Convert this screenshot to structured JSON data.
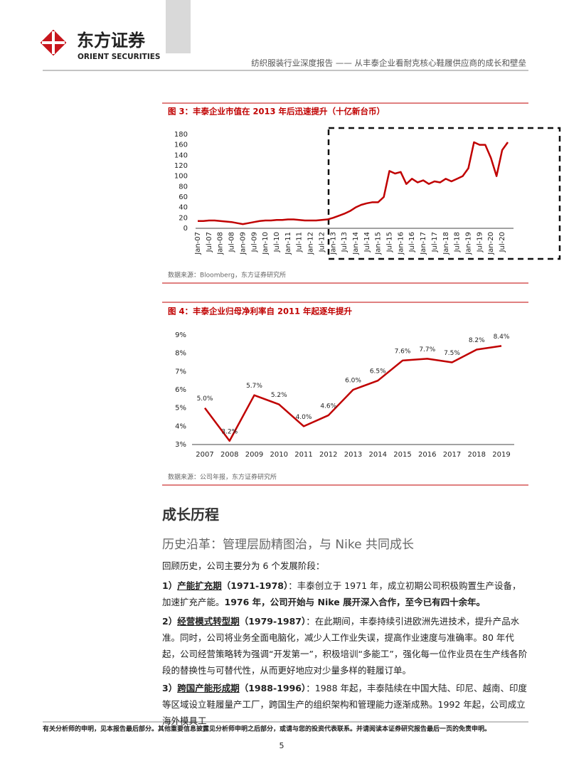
{
  "header": {
    "logo_cn": "东方证券",
    "logo_en": "ORIENT SECURITIES",
    "report_title": "纺织服装行业深度报告 —— 从丰泰企业看耐克核心鞋履供应商的成长和壁垒"
  },
  "chart_data": [
    {
      "type": "line",
      "title": "图 3：丰泰企业市值在 2013 年后迅速提升（十亿新台币）",
      "source": "数据来源：Bloomberg，东方证券研究所",
      "categories": [
        "Jan-07",
        null,
        "Jul-07",
        null,
        "Jan-08",
        null,
        "Jul-08",
        null,
        "Jan-09",
        null,
        "Jul-09",
        null,
        "Jan-10",
        null,
        "Jul-10",
        null,
        "Jan-11",
        null,
        "Jul-11",
        null,
        "Jan-12",
        null,
        "Jul-12",
        null,
        "Jan-13",
        null,
        "Jul-13",
        null,
        "Jan-14",
        null,
        "Jul-14",
        null,
        "Jan-15",
        null,
        "Jul-15",
        null,
        "Jan-16",
        null,
        "Jul-16",
        null,
        "Jan-17",
        null,
        "Jul-17",
        null,
        "Jan-18",
        null,
        "Jul-18",
        null,
        "Jan-19",
        null,
        "Jul-19",
        null,
        "Jan-20",
        null,
        "Jul-20",
        null
      ],
      "values": [
        14,
        14,
        15,
        15,
        14,
        13,
        12,
        10,
        8,
        10,
        12,
        14,
        15,
        15,
        16,
        16,
        17,
        17,
        16,
        15,
        15,
        15,
        16,
        17,
        20,
        24,
        28,
        33,
        40,
        45,
        48,
        50,
        50,
        60,
        110,
        105,
        108,
        85,
        95,
        88,
        92,
        85,
        90,
        88,
        95,
        90,
        95,
        100,
        115,
        165,
        160,
        160,
        135,
        100,
        150,
        165
      ],
      "color": "#c00000",
      "ylim": [
        0,
        180
      ],
      "yticks": [
        0,
        20,
        40,
        60,
        80,
        100,
        120,
        140,
        160,
        180
      ]
    },
    {
      "type": "line",
      "title": "图 4：丰泰企业归母净利率自 2011 年起逐年提升",
      "source": "数据来源：公司年报，东方证券研究所",
      "categories": [
        "2007",
        "2008",
        "2009",
        "2010",
        "2011",
        "2012",
        "2013",
        "2014",
        "2015",
        "2016",
        "2017",
        "2018",
        "2019"
      ],
      "values": [
        5.0,
        3.2,
        5.7,
        5.2,
        4.0,
        4.6,
        6.0,
        6.5,
        7.6,
        7.7,
        7.5,
        8.2,
        8.4
      ],
      "value_labels": [
        "5.0%",
        "3.2%",
        "5.7%",
        "5.2%",
        "4.0%",
        "4.6%",
        "6.0%",
        "6.5%",
        "7.6%",
        "7.7%",
        "7.5%",
        "8.2%",
        "8.4%"
      ],
      "color": "#c00000",
      "ylim": [
        3,
        9
      ],
      "yticks": [
        {
          "value": 3,
          "label": "3%"
        },
        {
          "value": 4,
          "label": "4%"
        },
        {
          "value": 5,
          "label": "5%"
        },
        {
          "value": 6,
          "label": "6%"
        },
        {
          "value": 7,
          "label": "7%"
        },
        {
          "value": 8,
          "label": "8%"
        },
        {
          "value": 9,
          "label": "9%"
        }
      ]
    }
  ],
  "body": {
    "heading": "成长历程",
    "subheading": "历史沿革：管理层励精图治，与 Nike 共同成长",
    "intro": "回顾历史，公司主要分为 6 个发展阶段：",
    "paragraphs": [
      {
        "number": "1）",
        "stage": "产能扩充期",
        "period": "（1971-1978）",
        "text": "：丰泰创立于 1971 年，成立初期公司积极购置生产设备，加速扩充产能。",
        "highlight": "1976 年，公司开始与 Nike 展开深入合作，至今已有四十余年。"
      },
      {
        "number": "2）",
        "stage": "经营模式转型期",
        "period": "（1979-1987）",
        "text": "：在此期间，丰泰持续引进欧洲先进技术，提升产品水准。同时，公司将业务全面电脑化，减少人工作业失误，提高作业速度与准确率。80 年代起，公司经营策略转为强调“开发第一”，积极培训“多能工”，强化每一位作业员在生产线各阶段的替换性与可替代性，从而更好地应对少量多样的鞋履订单。"
      },
      {
        "number": "3）",
        "stage": "跨国产能形成期",
        "period": "（1988-1996）",
        "text": "：1988 年起，丰泰陆续在中国大陆、印尼、越南、印度等区域设立鞋履量产工厂，跨国生产的组织架构和管理能力逐渐成熟。1992 年起，公司成立海外模具工"
      }
    ]
  },
  "footer": {
    "disclaimer": "有关分析师的申明，见本报告最后部分。其他重要信息披露见分析师申明之后部分，或请与您的投资代表联系。并请阅读本证券研究报告最后一页的免责申明。",
    "page": "5"
  }
}
